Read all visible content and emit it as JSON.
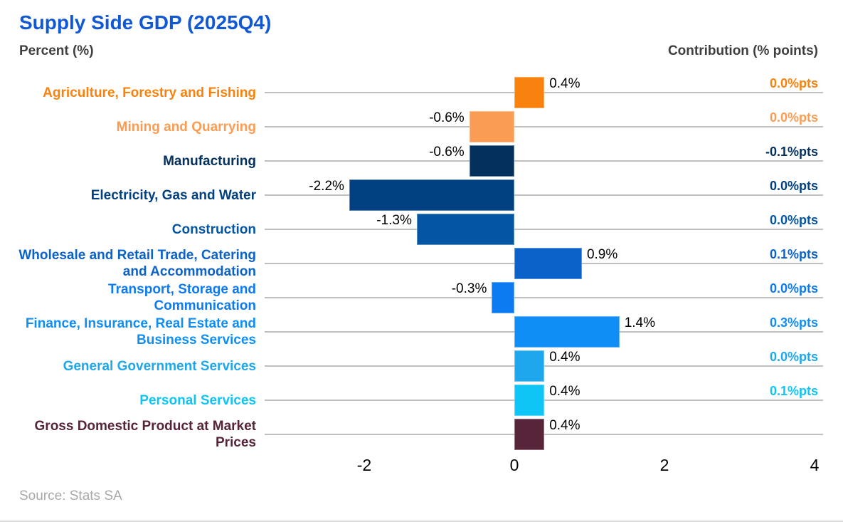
{
  "title": "Supply Side GDP (2025Q4)",
  "left_axis_title": "Percent (%)",
  "right_axis_title": "Contribution (% points)",
  "source": "Source: Stats SA",
  "colors": {
    "title": "#1158D4",
    "axis_header_text": "#3F3F3F",
    "value_label_text": "#000000",
    "gridline": "#BFBFBF",
    "source_text": "#A8A8A8",
    "bottom_divider": "#D9D9D9",
    "background": "#FFFFFF"
  },
  "chart_data": {
    "type": "bar",
    "orientation": "horizontal",
    "title": "Supply Side GDP (2025Q4)",
    "xlabel": "Percent (%)",
    "secondary_axis_label": "Contribution (% points)",
    "xlim": [
      -3.3,
      4.1
    ],
    "x_ticks": [
      "-2",
      "0",
      "2",
      "4"
    ],
    "x_tick_values": [
      -2,
      0,
      2,
      4
    ],
    "grid": true,
    "legend_position": "none",
    "categories": [
      "Agriculture, Forestry and Fishing",
      "Mining and Quarrying",
      "Manufacturing",
      "Electricity, Gas and Water",
      "Construction",
      "Wholesale and Retail Trade, Catering and Accommodation",
      "Transport, Storage and Communication",
      "Finance, Insurance, Real Estate and Business Services",
      "General Government Services",
      "Personal Services",
      "Gross Domestic Product at Market Prices"
    ],
    "series": [
      {
        "name": "Percent (%)",
        "values": [
          0.4,
          -0.6,
          -0.6,
          -2.2,
          -1.3,
          0.9,
          -0.3,
          1.4,
          0.4,
          0.4,
          0.4
        ],
        "labels": [
          "0.4%",
          "-0.6%",
          "-0.6%",
          "-2.2%",
          "-1.3%",
          "0.9%",
          "-0.3%",
          "1.4%",
          "0.4%",
          "0.4%",
          "0.4%"
        ]
      },
      {
        "name": "Contribution (% points)",
        "values": [
          0.0,
          0.0,
          -0.1,
          0.0,
          0.0,
          0.1,
          0.0,
          0.3,
          0.0,
          0.1,
          null
        ],
        "labels": [
          "0.0%pts",
          "0.0%pts",
          "-0.1%pts",
          "0.0%pts",
          "0.0%pts",
          "0.1%pts",
          "0.0%pts",
          "0.3%pts",
          "0.0%pts",
          "0.1%pts",
          null
        ]
      }
    ],
    "bar_colors": [
      "#F8820D",
      "#FB9C54",
      "#04305E",
      "#014182",
      "#0456A3",
      "#0B62C9",
      "#0C7AF0",
      "#0F8EF5",
      "#1EA7EC",
      "#0FC5F5",
      "#57243A"
    ]
  }
}
